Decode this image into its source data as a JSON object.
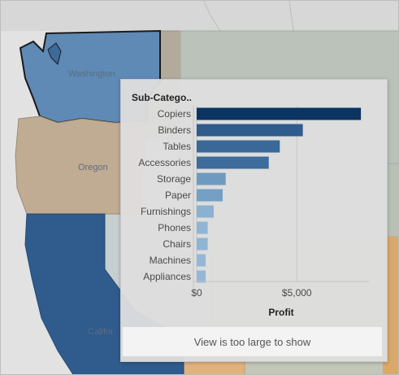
{
  "map": {
    "labels": {
      "washington": "Washington",
      "oregon": "Oregon",
      "california": "Califor"
    }
  },
  "tooltip": {
    "row_header": "Sub-Catego..",
    "x_axis_title": "Profit",
    "footer_message": "View is too large to show"
  },
  "chart_data": {
    "type": "bar",
    "orientation": "horizontal",
    "title": "",
    "ylabel": "Sub-Catego..",
    "xlabel": "Profit",
    "categories": [
      "Copiers",
      "Binders",
      "Tables",
      "Accessories",
      "Storage",
      "Paper",
      "Furnishings",
      "Phones",
      "Chairs",
      "Machines",
      "Appliances"
    ],
    "values": [
      8200,
      5300,
      4150,
      3600,
      1450,
      1300,
      850,
      550,
      550,
      450,
      450
    ],
    "colors": [
      "#0b3460",
      "#2f5b8d",
      "#3a6899",
      "#3e6c9c",
      "#6f9ac0",
      "#74a0c5",
      "#8ab0d2",
      "#8fb4d4",
      "#8fb4d4",
      "#93b7d6",
      "#93b7d6"
    ],
    "xticks": [
      {
        "value": 0,
        "label": "$0"
      },
      {
        "value": 5000,
        "label": "$5,000"
      }
    ],
    "xlim": [
      0,
      8600
    ],
    "grid": true
  }
}
